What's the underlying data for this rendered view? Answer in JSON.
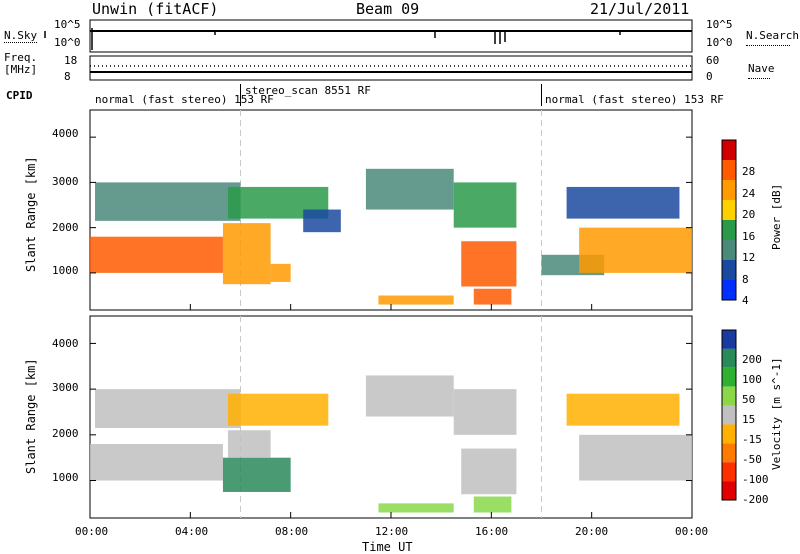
{
  "header": {
    "station": "Unwin (fitACF)",
    "beam": "Beam 09",
    "date": "21/Jul/2011"
  },
  "nsky_panel": {
    "left_label": "N.Sky",
    "right_label": "N.Search",
    "ticks_left": [
      "10^5",
      "10^0"
    ],
    "ticks_right": [
      "10^5",
      "10^0"
    ]
  },
  "freq_panel": {
    "left_label_line1": "Freq.",
    "left_label_line2": "[MHz]",
    "ticks_left": [
      "18",
      "8"
    ],
    "right_label": "Nave",
    "ticks_right": [
      "60",
      "0"
    ]
  },
  "cpid_panel": {
    "label": "CPID",
    "segments": [
      {
        "text": "normal (fast stereo) 153 RF",
        "start_hour": 0
      },
      {
        "text": "stereo_scan 8551 RF",
        "start_hour": 6
      },
      {
        "text": "normal (fast stereo) 153 RF",
        "start_hour": 18
      }
    ]
  },
  "chart_data": [
    {
      "type": "heatmap",
      "name": "power",
      "ylabel": "Slant Range [km]",
      "ylim": [
        180,
        4600
      ],
      "yticks": [
        1000,
        2000,
        3000,
        4000
      ],
      "xlim": [
        0,
        24
      ],
      "colorbar": {
        "label": "Power [dB]",
        "ticks": [
          "28",
          "24",
          "20",
          "16",
          "12",
          "8",
          "4"
        ],
        "colors": [
          "#d00000",
          "#ff5a00",
          "#ff9a00",
          "#ffd000",
          "#2a9a4a",
          "#4a8a7a",
          "#1a4aa0",
          "#0030ff"
        ]
      },
      "regions": [
        {
          "t0": 0.0,
          "t1": 5.3,
          "r0": 1000,
          "r1": 1800,
          "level": 0.8
        },
        {
          "t0": 5.3,
          "t1": 7.2,
          "r0": 750,
          "r1": 2100,
          "level": 0.75
        },
        {
          "t0": 7.2,
          "t1": 8.0,
          "r0": 800,
          "r1": 1200,
          "level": 0.7
        },
        {
          "t0": 0.2,
          "t1": 6.0,
          "r0": 2150,
          "r1": 3000,
          "level": 0.25
        },
        {
          "t0": 5.5,
          "t1": 9.5,
          "r0": 2200,
          "r1": 2900,
          "level": 0.4
        },
        {
          "t0": 8.5,
          "t1": 10.0,
          "r0": 1900,
          "r1": 2400,
          "level": 0.2
        },
        {
          "t0": 11.0,
          "t1": 14.5,
          "r0": 2400,
          "r1": 3300,
          "level": 0.25
        },
        {
          "t0": 14.5,
          "t1": 17.0,
          "r0": 2000,
          "r1": 3000,
          "level": 0.45
        },
        {
          "t0": 14.8,
          "t1": 17.0,
          "r0": 700,
          "r1": 1700,
          "level": 0.85
        },
        {
          "t0": 15.3,
          "t1": 16.8,
          "r0": 300,
          "r1": 650,
          "level": 0.9
        },
        {
          "t0": 11.5,
          "t1": 14.5,
          "r0": 300,
          "r1": 500,
          "level": 0.7
        },
        {
          "t0": 18.0,
          "t1": 20.5,
          "r0": 950,
          "r1": 1400,
          "level": 0.3
        },
        {
          "t0": 19.5,
          "t1": 24.0,
          "r0": 1000,
          "r1": 2000,
          "level": 0.7
        },
        {
          "t0": 19.0,
          "t1": 23.5,
          "r0": 2200,
          "r1": 2900,
          "level": 0.2
        }
      ]
    },
    {
      "type": "heatmap",
      "name": "velocity",
      "ylabel": "Slant Range [km]",
      "ylim": [
        180,
        4600
      ],
      "yticks": [
        1000,
        2000,
        3000,
        4000
      ],
      "xlim": [
        0,
        24
      ],
      "xticks": [
        "00:00",
        "04:00",
        "08:00",
        "12:00",
        "16:00",
        "20:00",
        "00:00"
      ],
      "xlabel": "Time UT",
      "colorbar": {
        "label": "Velocity [m s^-1]",
        "ticks": [
          "200",
          "100",
          "50",
          "15",
          "-15",
          "-50",
          "-100",
          "-200"
        ],
        "colors": [
          "#1a3aa0",
          "#2a8a5a",
          "#30b030",
          "#8ad84a",
          "#c0c0c0",
          "#ffb000",
          "#ff7a00",
          "#ff3000",
          "#e00000"
        ]
      },
      "regions": [
        {
          "t0": 0.0,
          "t1": 5.3,
          "r0": 1000,
          "r1": 1800,
          "level": 0.5
        },
        {
          "t0": 5.3,
          "t1": 8.0,
          "r0": 750,
          "r1": 1500,
          "level": 0.85
        },
        {
          "t0": 5.5,
          "t1": 7.2,
          "r0": 1500,
          "r1": 2100,
          "level": 0.55
        },
        {
          "t0": 0.2,
          "t1": 6.0,
          "r0": 2150,
          "r1": 3000,
          "level": 0.45
        },
        {
          "t0": 5.5,
          "t1": 9.5,
          "r0": 2200,
          "r1": 2900,
          "level": 0.42
        },
        {
          "t0": 11.0,
          "t1": 14.5,
          "r0": 2400,
          "r1": 3300,
          "level": 0.5
        },
        {
          "t0": 14.5,
          "t1": 17.0,
          "r0": 2000,
          "r1": 3000,
          "level": 0.45
        },
        {
          "t0": 14.8,
          "t1": 17.0,
          "r0": 700,
          "r1": 1700,
          "level": 0.45
        },
        {
          "t0": 15.3,
          "t1": 16.8,
          "r0": 300,
          "r1": 650,
          "level": 0.65
        },
        {
          "t0": 11.5,
          "t1": 14.5,
          "r0": 300,
          "r1": 500,
          "level": 0.62
        },
        {
          "t0": 19.5,
          "t1": 24.0,
          "r0": 1000,
          "r1": 2000,
          "level": 0.5
        },
        {
          "t0": 19.0,
          "t1": 23.5,
          "r0": 2200,
          "r1": 2900,
          "level": 0.42
        }
      ]
    }
  ]
}
